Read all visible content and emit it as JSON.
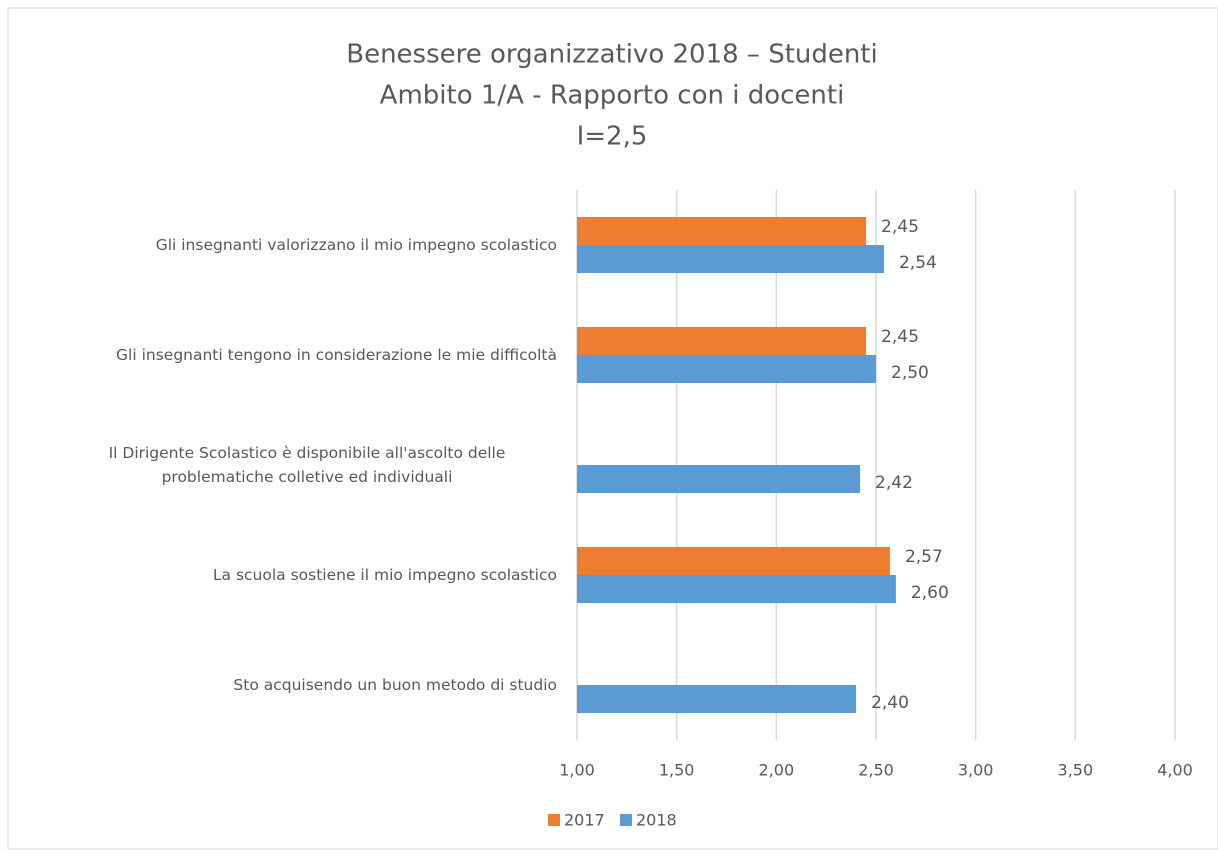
{
  "chart_data": {
    "type": "hbar",
    "title": [
      "Benessere organizzativo 2018 – Studenti",
      "Ambito 1/A - Rapporto con i docenti",
      "I=2,5"
    ],
    "categories": [
      "Gli insegnanti valorizzano il mio impegno scolastico",
      "Gli insegnanti tengono in considerazione le mie difficoltà",
      "Il Dirigente Scolastico è disponibile all'ascolto delle problematiche colletive ed individuali",
      "La scuola sostiene il mio impegno scolastico",
      "Sto acquisendo un buon metodo di studio"
    ],
    "series": [
      {
        "name": "2017",
        "color": "#ed7d31",
        "values": [
          2.45,
          2.45,
          null,
          2.57,
          null
        ],
        "value_labels": [
          "2,45",
          "2,45",
          null,
          "2,57",
          null
        ]
      },
      {
        "name": "2018",
        "color": "#5b9bd5",
        "values": [
          2.54,
          2.5,
          2.42,
          2.6,
          2.4
        ],
        "value_labels": [
          "2,54",
          "2,50",
          "2,42",
          "2,60",
          "2,40"
        ]
      }
    ],
    "xlim": [
      1,
      4
    ],
    "xticks": [
      {
        "value": 1,
        "label": "1,00"
      },
      {
        "value": 1.5,
        "label": "1,50"
      },
      {
        "value": 2,
        "label": "2,00"
      },
      {
        "value": 2.5,
        "label": "2,50"
      },
      {
        "value": 3,
        "label": "3,00"
      },
      {
        "value": 3.5,
        "label": "3,50"
      },
      {
        "value": 4,
        "label": "4,00"
      }
    ],
    "grid": true,
    "legend": "bottom"
  }
}
